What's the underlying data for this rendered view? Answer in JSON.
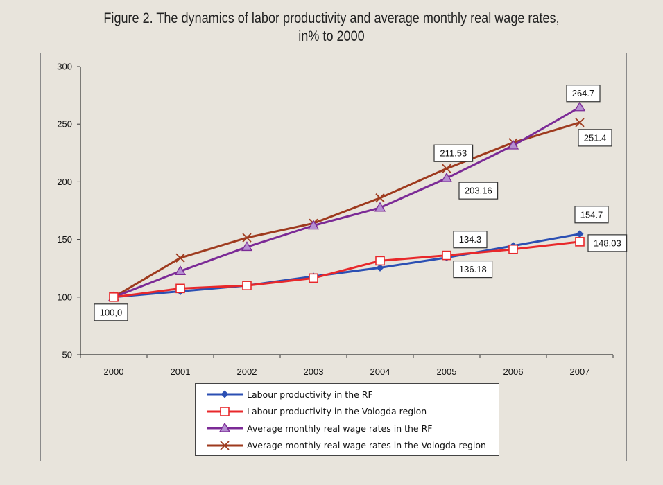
{
  "title": {
    "line1": "Figure 2. The dynamics of labor productivity and average monthly real wage rates,",
    "line2": "in% to 2000"
  },
  "chart_data": {
    "type": "line",
    "title": "Figure 2. The dynamics of labor productivity and average monthly real wage rates, in% to 2000",
    "xlabel": "",
    "ylabel": "",
    "categories": [
      "2000",
      "2001",
      "2002",
      "2003",
      "2004",
      "2005",
      "2006",
      "2007"
    ],
    "ylim": [
      50,
      300
    ],
    "yticks": [
      50,
      100,
      150,
      200,
      250,
      300
    ],
    "grid": false,
    "legend_position": "bottom-center",
    "series": [
      {
        "name": "Labour productivity in the RF",
        "color": "#2b4fb3",
        "marker": "diamond",
        "values": [
          100,
          105,
          110,
          118,
          125.5,
          134.3,
          144.5,
          154.7
        ]
      },
      {
        "name": "Labour productivity in the Vologda region",
        "color": "#e8282b",
        "marker": "square",
        "values": [
          100,
          107.5,
          110,
          116.5,
          131.5,
          136.18,
          141.5,
          148.03
        ]
      },
      {
        "name": "Average monthly real wage rates in the RF",
        "color": "#7b2a96",
        "marker": "triangle",
        "values": [
          100,
          122.5,
          143.5,
          162,
          177.5,
          203.16,
          231.5,
          264.7
        ]
      },
      {
        "name": "Average monthly real wage rates in the Vologda region",
        "color": "#9e3a1e",
        "marker": "x",
        "values": [
          100,
          134,
          151.5,
          164,
          186,
          211.53,
          234,
          251.4
        ]
      }
    ],
    "annotations": [
      {
        "text": "100,0",
        "series": 0,
        "index": 0
      },
      {
        "text": "134.3",
        "series": 0,
        "index": 5
      },
      {
        "text": "136.18",
        "series": 1,
        "index": 5
      },
      {
        "text": "154.7",
        "series": 0,
        "index": 7
      },
      {
        "text": "148.03",
        "series": 1,
        "index": 7
      },
      {
        "text": "211.53",
        "series": 3,
        "index": 5
      },
      {
        "text": "203.16",
        "series": 2,
        "index": 5
      },
      {
        "text": "264.7",
        "series": 2,
        "index": 7
      },
      {
        "text": "251.4",
        "series": 3,
        "index": 7
      }
    ]
  }
}
